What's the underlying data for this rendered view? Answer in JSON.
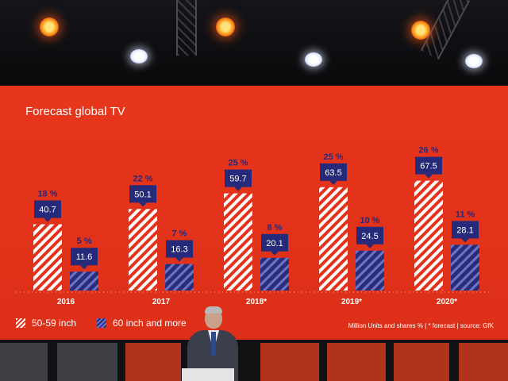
{
  "slide": {
    "title": "Forecast global TV",
    "legend": [
      {
        "label": "50-59 inch",
        "color": "#ffffff"
      },
      {
        "label": "60 inch and more",
        "color": "#2b2d78"
      }
    ],
    "source_note": "Million Units and shares %  |  * forecast  |  source: GfK"
  },
  "colors": {
    "background": "#e5301a",
    "series_a_stripe": "#ffffff",
    "series_b_fill": "#2b2d78",
    "series_b_stripe": "#6a74c8",
    "label_box": "#262a7a"
  },
  "chart_data": {
    "type": "bar",
    "title": "Forecast global TV",
    "categories": [
      "2016",
      "2017",
      "2018*",
      "2019*",
      "2020*"
    ],
    "series": [
      {
        "name": "50-59 inch",
        "values": [
          40.7,
          50.1,
          59.7,
          63.5,
          67.5
        ],
        "shares": [
          "18 %",
          "22 %",
          "25 %",
          "25 %",
          "26 %"
        ]
      },
      {
        "name": "60 inch and more",
        "values": [
          11.6,
          16.3,
          20.1,
          24.5,
          28.1
        ],
        "shares": [
          "5 %",
          "7 %",
          "8 %",
          "10 %",
          "11 %"
        ]
      }
    ],
    "unit_note": "Million Units and shares %",
    "ylim": [
      0,
      80
    ],
    "grid": false,
    "legend_position": "bottom-left"
  }
}
